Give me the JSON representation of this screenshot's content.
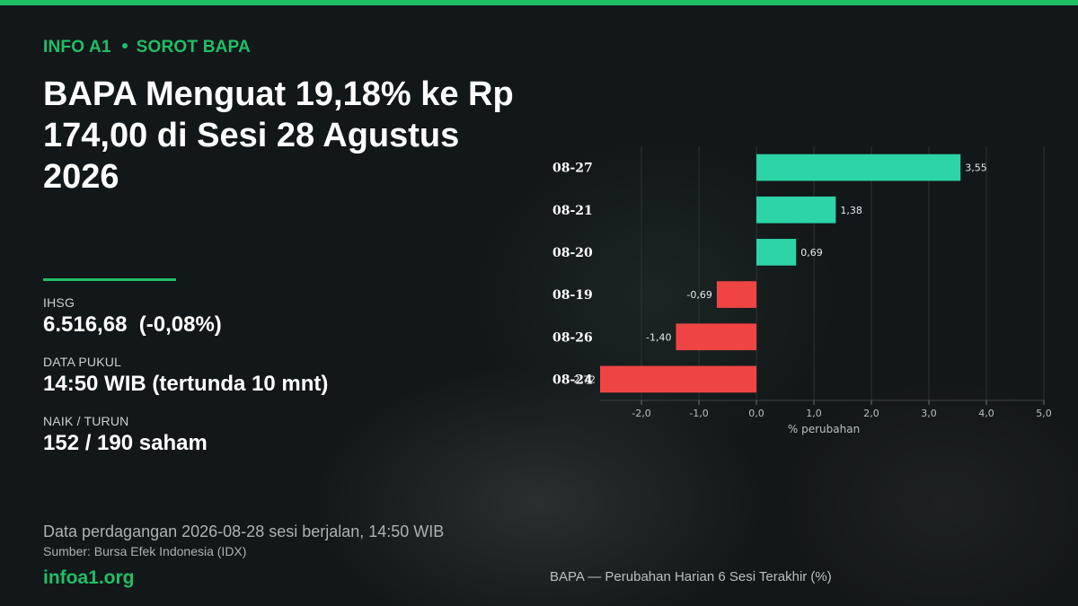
{
  "header": {
    "kicker_brand": "INFO A1",
    "kicker_section": "SOROT BAPA",
    "headline": "BAPA Menguat 19,18% ke Rp 174,00 di Sesi 28 Agustus 2026"
  },
  "stats": {
    "ihsg_label": "IHSG",
    "ihsg_value": "6.516,68  (-0,08%)",
    "time_label": "DATA PUKUL",
    "time_value": "14:50 WIB (tertunda 10 mnt)",
    "updown_label": "NAIK / TURUN",
    "updown_value": "152 / 190 saham"
  },
  "footer": {
    "trading_note": "Data perdagangan 2026-08-28 sesi berjalan, 14:50 WIB",
    "source": "Sumber: Bursa Efek Indonesia (IDX)",
    "brand_url": "infoa1.org",
    "chart_caption": "BAPA — Perubahan Harian 6 Sesi Terakhir (%)"
  },
  "colors": {
    "accent": "#1fbf67",
    "positive": "#2dd4a8",
    "negative": "#ef4444",
    "background": "#121719"
  },
  "chart_data": {
    "type": "bar",
    "orientation": "horizontal",
    "categories": [
      "08-27",
      "08-21",
      "08-20",
      "08-19",
      "08-26",
      "08-24"
    ],
    "values": [
      3.55,
      1.38,
      0.69,
      -0.69,
      -1.4,
      -2.72
    ],
    "value_labels": [
      "3,55",
      "1,38",
      "0,69",
      "-0,69",
      "-1,40",
      "-2,72"
    ],
    "xlabel": "% perubahan",
    "xlim": [
      -2.72,
      5.0
    ],
    "xticks": [
      -2.0,
      -1.0,
      0.0,
      1.0,
      2.0,
      3.0,
      4.0,
      5.0
    ],
    "xtick_labels": [
      "-2,0",
      "-1,0",
      "0,0",
      "1,0",
      "2,0",
      "3,0",
      "4,0",
      "5,0"
    ],
    "grid": true
  }
}
